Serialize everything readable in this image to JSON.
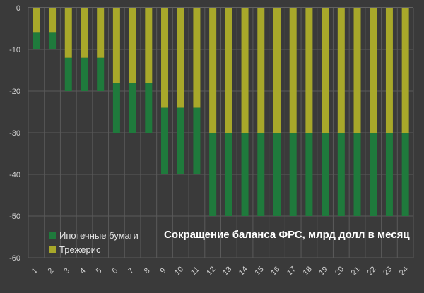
{
  "chart_data": {
    "type": "bar",
    "stacked": true,
    "title": "Сокращение баланса ФРС, млрд долл в месяц",
    "xlabel": "",
    "ylabel": "",
    "categories": [
      "1",
      "2",
      "3",
      "4",
      "5",
      "6",
      "7",
      "8",
      "9",
      "10",
      "11",
      "12",
      "13",
      "14",
      "15",
      "16",
      "17",
      "18",
      "19",
      "20",
      "21",
      "22",
      "23",
      "24"
    ],
    "ylim": [
      -60,
      0
    ],
    "yticks": [
      "0",
      "-10",
      "-20",
      "-30",
      "-40",
      "-50",
      "-60"
    ],
    "ytick_values": [
      0,
      -10,
      -20,
      -30,
      -40,
      -50,
      -60
    ],
    "grid": true,
    "legend_position": "bottom-left",
    "series": [
      {
        "name": "Трежерис",
        "color": "#a8a82a",
        "values": [
          -6,
          -6,
          -12,
          -12,
          -12,
          -18,
          -18,
          -18,
          -24,
          -24,
          -24,
          -30,
          -30,
          -30,
          -30,
          -30,
          -30,
          -30,
          -30,
          -30,
          -30,
          -30,
          -30,
          -30
        ]
      },
      {
        "name": "Ипотечные бумаги",
        "color": "#1f7a3c",
        "values": [
          -4,
          -4,
          -8,
          -8,
          -8,
          -12,
          -12,
          -12,
          -16,
          -16,
          -16,
          -20,
          -20,
          -20,
          -20,
          -20,
          -20,
          -20,
          -20,
          -20,
          -20,
          -20,
          -20,
          -20
        ]
      }
    ],
    "legend": [
      {
        "label": "Ипотечные бумаги",
        "color": "#1f7a3c"
      },
      {
        "label": "Трежерис",
        "color": "#a8a82a"
      }
    ]
  }
}
